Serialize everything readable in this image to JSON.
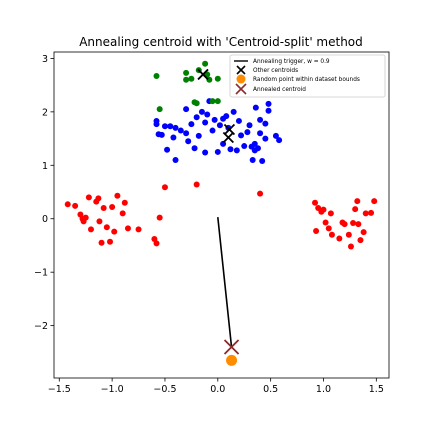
{
  "chart_data": {
    "type": "scatter",
    "title": "Annealing centroid with 'Centroid-split' method",
    "xlabel": "",
    "ylabel": "",
    "xlim": [
      -1.55,
      1.62
    ],
    "ylim": [
      -2.98,
      3.12
    ],
    "xticks": [
      -1.5,
      -1.0,
      -0.5,
      0.0,
      0.5,
      1.0,
      1.5
    ],
    "xtick_labels": [
      "−1.5",
      "−1.0",
      "−0.5",
      "0.0",
      "0.5",
      "1.0",
      "1.5"
    ],
    "yticks": [
      -2,
      -1,
      0,
      1,
      2,
      3
    ],
    "ytick_labels": [
      "−2",
      "−1",
      "0",
      "1",
      "2",
      "3"
    ],
    "grid": false,
    "legend_position": "top-right",
    "legend": [
      {
        "label": "Annealing trigger, w = 0.9",
        "marker": "line"
      },
      {
        "label": "Other centroids",
        "marker": "x-black"
      },
      {
        "label": "Random point within dataset bounds",
        "marker": "dot-orange"
      },
      {
        "label": "Annealed centroid",
        "marker": "x-brown"
      }
    ],
    "colors": {
      "red": "#ff0000",
      "blue": "#0000ff",
      "green": "#008000",
      "black": "#000000",
      "orange": "#ff8c00",
      "brown": "#8b2b2b"
    },
    "series": [
      {
        "color": "red",
        "points": [
          [
            -1.42,
            0.27
          ],
          [
            -1.35,
            0.24
          ],
          [
            -1.3,
            0.08
          ],
          [
            -1.28,
            0.0
          ],
          [
            -1.27,
            -0.05
          ],
          [
            -1.25,
            0.02
          ],
          [
            -1.22,
            0.4
          ],
          [
            -1.2,
            -0.2
          ],
          [
            -1.15,
            0.32
          ],
          [
            -1.13,
            0.38
          ],
          [
            -1.12,
            -0.05
          ],
          [
            -1.1,
            -0.45
          ],
          [
            -1.08,
            0.2
          ],
          [
            -1.05,
            -0.16
          ],
          [
            -1.02,
            -0.43
          ],
          [
            -1.0,
            0.22
          ],
          [
            -0.98,
            -0.24
          ],
          [
            -0.95,
            0.43
          ],
          [
            -0.9,
            0.1
          ],
          [
            -0.88,
            0.3
          ],
          [
            -0.85,
            -0.18
          ],
          [
            -0.75,
            -0.2
          ],
          [
            -0.6,
            -0.38
          ],
          [
            -0.58,
            -0.46
          ],
          [
            -0.55,
            0.02
          ],
          [
            -0.5,
            0.59
          ],
          [
            -0.2,
            0.64
          ],
          [
            0.4,
            0.47
          ],
          [
            0.92,
            0.3
          ],
          [
            0.93,
            -0.23
          ],
          [
            0.95,
            0.2
          ],
          [
            0.98,
            0.13
          ],
          [
            1.0,
            0.17
          ],
          [
            1.02,
            -0.07
          ],
          [
            1.05,
            -0.18
          ],
          [
            1.07,
            0.1
          ],
          [
            1.08,
            -0.3
          ],
          [
            1.15,
            -0.37
          ],
          [
            1.18,
            -0.07
          ],
          [
            1.2,
            -0.1
          ],
          [
            1.24,
            -0.3
          ],
          [
            1.26,
            -0.52
          ],
          [
            1.28,
            -0.08
          ],
          [
            1.3,
            0.18
          ],
          [
            1.32,
            0.33
          ],
          [
            1.33,
            -0.1
          ],
          [
            1.35,
            -0.4
          ],
          [
            1.38,
            -0.25
          ],
          [
            1.4,
            0.1
          ],
          [
            1.45,
            0.11
          ],
          [
            1.48,
            0.33
          ]
        ]
      },
      {
        "color": "blue",
        "points": [
          [
            -0.58,
            1.77
          ],
          [
            -0.58,
            1.83
          ],
          [
            -0.56,
            1.58
          ],
          [
            -0.53,
            1.57
          ],
          [
            -0.5,
            1.73
          ],
          [
            -0.48,
            1.29
          ],
          [
            -0.45,
            1.73
          ],
          [
            -0.42,
            1.52
          ],
          [
            -0.4,
            1.1
          ],
          [
            -0.4,
            1.7
          ],
          [
            -0.35,
            1.65
          ],
          [
            -0.3,
            2.05
          ],
          [
            -0.3,
            1.6
          ],
          [
            -0.28,
            1.45
          ],
          [
            -0.25,
            1.77
          ],
          [
            -0.22,
            1.32
          ],
          [
            -0.2,
            1.9
          ],
          [
            -0.18,
            1.55
          ],
          [
            -0.15,
            2.0
          ],
          [
            -0.12,
            1.24
          ],
          [
            -0.12,
            1.8
          ],
          [
            -0.1,
            1.95
          ],
          [
            -0.08,
            2.2
          ],
          [
            -0.05,
            1.65
          ],
          [
            -0.03,
            1.85
          ],
          [
            0.0,
            1.25
          ],
          [
            0.02,
            1.75
          ],
          [
            0.05,
            1.87
          ],
          [
            0.05,
            1.4
          ],
          [
            0.08,
            1.92
          ],
          [
            0.1,
            1.7
          ],
          [
            0.12,
            1.3
          ],
          [
            0.15,
            2.0
          ],
          [
            0.18,
            1.28
          ],
          [
            0.2,
            1.83
          ],
          [
            0.22,
            1.56
          ],
          [
            0.25,
            1.36
          ],
          [
            0.28,
            1.62
          ],
          [
            0.3,
            1.75
          ],
          [
            0.32,
            1.35
          ],
          [
            0.33,
            1.1
          ],
          [
            0.35,
            1.4
          ],
          [
            0.35,
            1.28
          ],
          [
            0.36,
            2.08
          ],
          [
            0.38,
            1.32
          ],
          [
            0.4,
            1.6
          ],
          [
            0.4,
            1.85
          ],
          [
            0.42,
            1.08
          ],
          [
            0.45,
            1.78
          ],
          [
            0.45,
            1.5
          ],
          [
            0.48,
            2.02
          ],
          [
            0.48,
            2.15
          ],
          [
            0.55,
            1.55
          ],
          [
            0.58,
            1.47
          ]
        ]
      },
      {
        "color": "green",
        "points": [
          [
            -0.58,
            2.67
          ],
          [
            -0.55,
            2.05
          ],
          [
            -0.3,
            2.73
          ],
          [
            -0.3,
            2.6
          ],
          [
            -0.25,
            2.62
          ],
          [
            -0.22,
            2.18
          ],
          [
            -0.2,
            2.16
          ],
          [
            -0.18,
            2.78
          ],
          [
            -0.12,
            2.9
          ],
          [
            -0.1,
            2.7
          ],
          [
            -0.08,
            2.6
          ],
          [
            -0.05,
            2.2
          ],
          [
            0.0,
            2.2
          ],
          [
            0.0,
            2.62
          ]
        ]
      }
    ],
    "other_centroids": [
      [
        -0.14,
        2.7
      ],
      [
        0.11,
        1.67
      ],
      [
        0.1,
        1.52
      ]
    ],
    "annealing_trigger": {
      "from": [
        0.0,
        0.03
      ],
      "to": [
        0.13,
        -2.4
      ]
    },
    "random_point": [
      0.13,
      -2.65
    ],
    "annealed_centroid": [
      0.13,
      -2.4
    ]
  }
}
